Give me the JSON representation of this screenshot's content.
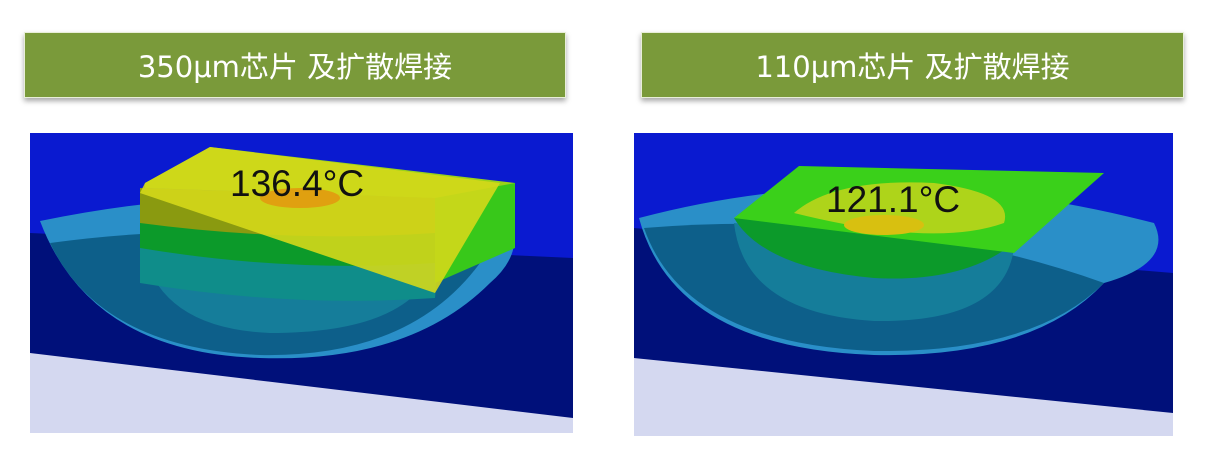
{
  "panels": [
    {
      "title": "350μm芯片 及扩散焊接",
      "temperature": "136.4°C"
    },
    {
      "title": "110μm芯片 及扩散焊接",
      "temperature": "121.1°C"
    }
  ],
  "colors": {
    "title_bar": "#7a9a3a",
    "background_blue": "#0a1ad0",
    "substrate_navy": "#00107a",
    "base": "#d4d8f0"
  }
}
